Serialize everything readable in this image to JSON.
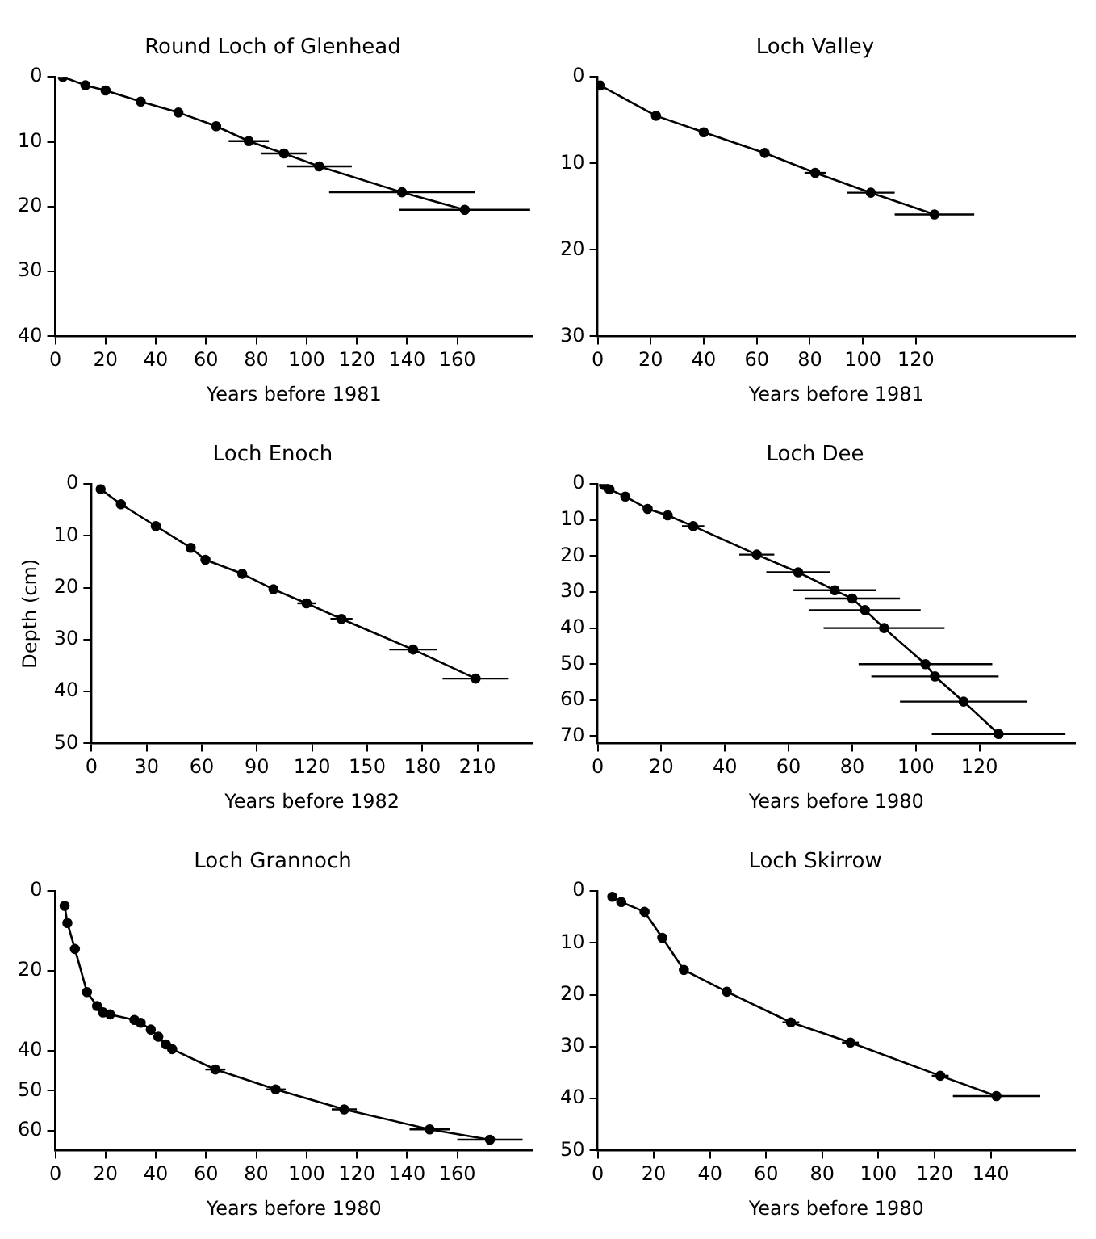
{
  "chart_data": [
    {
      "type": "line",
      "title": "Round Loch of Glenhead",
      "xlabel": "Years before 1981",
      "x": [
        3,
        12,
        20,
        34,
        49,
        64,
        77,
        91,
        105,
        138,
        163
      ],
      "series": [
        {
          "color": "#000000",
          "values": [
            0,
            1.3,
            2.1,
            3.8,
            5.5,
            7.6,
            9.9,
            11.8,
            13.8,
            17.8,
            20.5
          ],
          "xerrors": [
            null,
            null,
            null,
            null,
            null,
            null,
            8,
            9,
            13,
            29,
            26
          ]
        }
      ],
      "xlim": [
        0,
        190
      ],
      "xticks": [
        0,
        20,
        40,
        60,
        80,
        100,
        120,
        140,
        160
      ],
      "ylim": [
        40,
        0
      ],
      "yticks": [
        0,
        10,
        20,
        30,
        40
      ],
      "marker": "circle",
      "grid": false,
      "legend": false
    },
    {
      "type": "line",
      "title": "Loch Valley",
      "xlabel": "Years before 1981",
      "x": [
        1,
        22,
        40,
        63,
        82,
        103,
        127
      ],
      "series": [
        {
          "color": "#000000",
          "values": [
            1,
            4.5,
            6.4,
            8.8,
            11.1,
            13.4,
            15.9
          ],
          "xerrors": [
            null,
            null,
            null,
            null,
            4,
            9,
            15
          ]
        }
      ],
      "xlim": [
        0,
        180
      ],
      "xticks": [
        0,
        20,
        40,
        60,
        80,
        100,
        120
      ],
      "ylim": [
        30,
        0
      ],
      "yticks": [
        0,
        10,
        20,
        30
      ],
      "marker": "circle",
      "grid": false,
      "legend": false
    },
    {
      "type": "line",
      "title": "Loch Enoch",
      "xlabel": "Years before 1982",
      "ylabel": "Depth (cm)",
      "x": [
        5,
        16,
        35,
        54,
        62,
        82,
        99,
        117,
        136,
        175,
        209
      ],
      "series": [
        {
          "color": "#000000",
          "values": [
            1,
            3.9,
            8.1,
            12.3,
            14.6,
            17.3,
            20.3,
            23,
            26,
            31.9,
            37.5
          ],
          "xerrors": [
            null,
            null,
            null,
            null,
            null,
            null,
            null,
            5,
            6,
            13,
            18
          ]
        }
      ],
      "xlim": [
        0,
        240
      ],
      "xticks": [
        0,
        30,
        60,
        90,
        120,
        150,
        180,
        210
      ],
      "ylim": [
        50,
        0
      ],
      "yticks": [
        0,
        10,
        20,
        30,
        40,
        50
      ],
      "marker": "circle",
      "grid": false,
      "legend": false
    },
    {
      "type": "line",
      "title": "Loch Dee",
      "xlabel": "Years before 1980",
      "x": [
        2,
        3.7,
        8.7,
        15.7,
        22,
        30,
        50,
        63,
        74.5,
        80,
        84,
        90,
        103,
        106,
        115,
        126
      ],
      "series": [
        {
          "color": "#000000",
          "values": [
            0.3,
            1.5,
            3.5,
            6.9,
            8.7,
            11.7,
            19.6,
            24.5,
            29.5,
            31.8,
            35,
            40,
            50,
            53.4,
            60.4,
            69.4
          ],
          "xerrors": [
            null,
            null,
            null,
            null,
            null,
            3.5,
            5.5,
            10,
            13,
            15,
            17.5,
            19,
            21,
            20,
            20,
            21
          ]
        }
      ],
      "xlim": [
        0,
        150
      ],
      "xticks": [
        0,
        20,
        40,
        60,
        80,
        100,
        120
      ],
      "ylim": [
        72,
        0
      ],
      "yticks": [
        0,
        10,
        20,
        30,
        40,
        50,
        60,
        70
      ],
      "marker": "circle",
      "grid": false,
      "legend": false
    },
    {
      "type": "line",
      "title": "Loch Grannoch",
      "xlabel": "Years before 1980",
      "x": [
        3.7,
        4.8,
        7.8,
        12.6,
        16.6,
        19,
        21.8,
        31.5,
        34,
        38,
        41,
        44,
        46.5,
        63.7,
        87.7,
        115,
        149,
        173
      ],
      "series": [
        {
          "color": "#000000",
          "values": [
            3.7,
            8,
            14.5,
            25.3,
            28.8,
            30.4,
            30.9,
            32.3,
            33,
            34.7,
            36.5,
            38.4,
            39.6,
            44.7,
            49.7,
            54.7,
            59.7,
            62.3
          ],
          "xerrors": [
            null,
            null,
            null,
            null,
            null,
            null,
            null,
            null,
            null,
            null,
            null,
            null,
            null,
            4,
            4,
            5,
            8,
            13
          ]
        }
      ],
      "xlim": [
        0,
        190
      ],
      "xticks": [
        0,
        20,
        40,
        60,
        80,
        100,
        120,
        140,
        160
      ],
      "ylim": [
        65,
        0
      ],
      "yticks": [
        0,
        20,
        40,
        50,
        60
      ],
      "marker": "circle",
      "grid": false,
      "legend": false
    },
    {
      "type": "line",
      "title": "Loch Skirrow",
      "xlabel": "Years before 1980",
      "x": [
        5.2,
        8.4,
        16.7,
        23,
        30.7,
        46,
        68.8,
        90,
        122,
        142
      ],
      "series": [
        {
          "color": "#000000",
          "values": [
            1.1,
            2.1,
            4,
            9,
            15.2,
            19.4,
            25.3,
            29.2,
            35.6,
            39.5
          ],
          "xerrors": [
            null,
            null,
            null,
            null,
            null,
            null,
            3,
            3,
            3,
            15.5
          ]
        }
      ],
      "xlim": [
        0,
        170
      ],
      "xticks": [
        0,
        20,
        40,
        60,
        80,
        100,
        120,
        140
      ],
      "ylim": [
        50,
        0
      ],
      "yticks": [
        0,
        10,
        20,
        30,
        40,
        50
      ],
      "marker": "circle",
      "grid": false,
      "legend": false
    }
  ]
}
